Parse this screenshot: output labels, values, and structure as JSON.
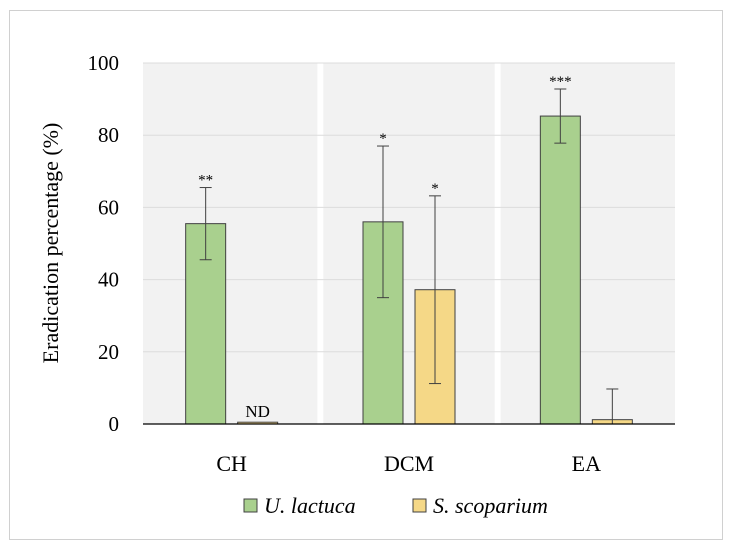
{
  "chart_data": {
    "type": "bar",
    "title": "",
    "xlabel": "",
    "ylabel": "Eradication percentage (%)",
    "ylim": [
      0,
      100
    ],
    "yticks": [
      0,
      20,
      40,
      60,
      80,
      100
    ],
    "categories": [
      "CH",
      "DCM",
      "EA"
    ],
    "series": [
      {
        "name": "U. lactuca",
        "color": "#a9d08e",
        "values": [
          55.5,
          56,
          85.3
        ],
        "errors": [
          10,
          21,
          7.5
        ],
        "annotations": [
          "**",
          "*",
          "***"
        ]
      },
      {
        "name": "S. scoparium",
        "color": "#f5d887",
        "values": [
          0.5,
          37.2,
          1.2
        ],
        "errors": [
          0,
          26,
          8.5
        ],
        "annotations": [
          "ND",
          "*",
          ""
        ]
      }
    ],
    "legend_position": "bottom",
    "grid": true
  }
}
